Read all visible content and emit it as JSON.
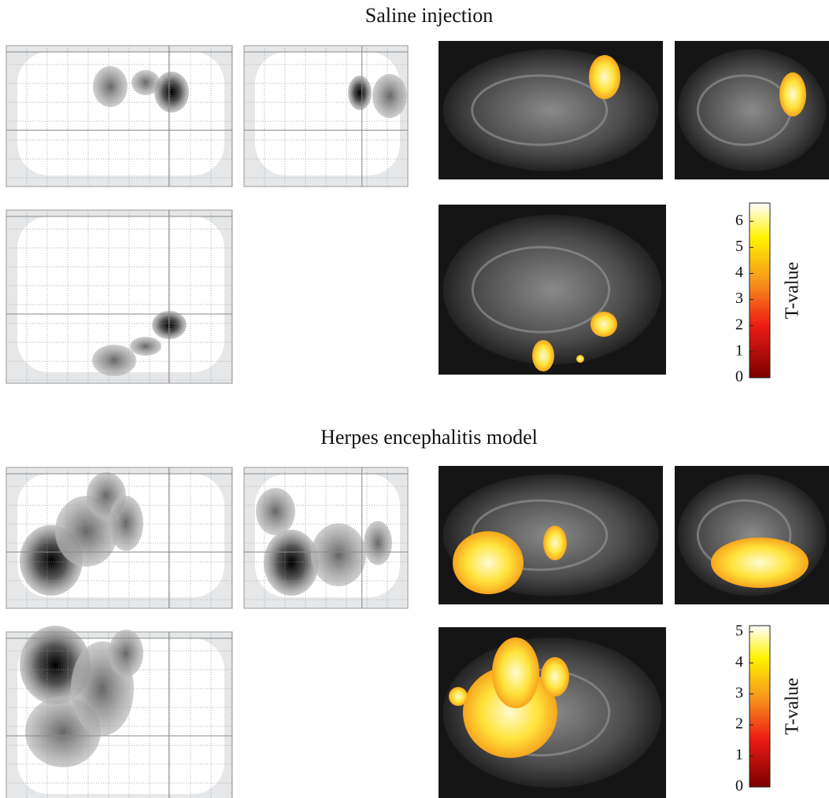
{
  "panels": [
    {
      "title": "Saline injection",
      "colorbar": {
        "label": "T-value",
        "lim": [
          0,
          6.7
        ],
        "ticks": [
          0,
          1,
          2,
          3,
          4,
          5,
          6
        ]
      }
    },
    {
      "title": "Herpes encephalitis model",
      "colorbar": {
        "label": "T-value",
        "lim": [
          0,
          5.2
        ],
        "ticks": [
          0,
          1,
          2,
          3,
          4,
          5
        ]
      }
    }
  ]
}
